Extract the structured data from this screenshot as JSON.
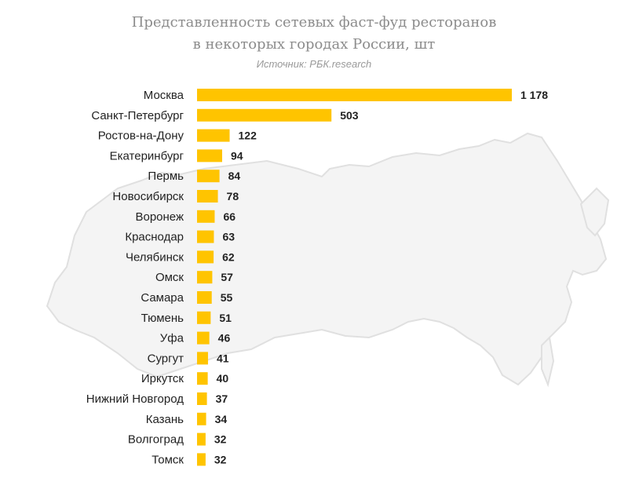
{
  "title_lines": [
    "Представленность сетевых фаст-фуд ресторанов",
    "в некоторых городах России, шт"
  ],
  "source": "Источник: РБК.research",
  "colors": {
    "bar": "#ffc400",
    "label": "#222222",
    "value": "#222222",
    "map": "#ebebeb",
    "map_stroke": "#dcdcdc"
  },
  "chart_data": {
    "type": "bar",
    "orientation": "horizontal",
    "title": "Представленность сетевых фаст-фуд ресторанов в некоторых городах России, шт",
    "categories": [
      "Москва",
      "Санкт-Петербург",
      "Ростов-на-Дону",
      "Екатеринбург",
      "Пермь",
      "Новосибирск",
      "Воронеж",
      "Краснодар",
      "Челябинск",
      "Омск",
      "Самара",
      "Тюмень",
      "Уфа",
      "Сургут",
      "Иркутск",
      "Нижний Новгород",
      "Казань",
      "Волгоград",
      "Томск"
    ],
    "values": [
      1178,
      503,
      122,
      94,
      84,
      78,
      66,
      63,
      62,
      57,
      55,
      51,
      46,
      41,
      40,
      37,
      34,
      32,
      32
    ],
    "value_labels": [
      "1 178",
      "503",
      "122",
      "94",
      "84",
      "78",
      "66",
      "63",
      "62",
      "57",
      "55",
      "51",
      "46",
      "41",
      "40",
      "37",
      "34",
      "32",
      "32"
    ],
    "xlim": [
      0,
      1178
    ],
    "grid": false,
    "legend": "none"
  }
}
